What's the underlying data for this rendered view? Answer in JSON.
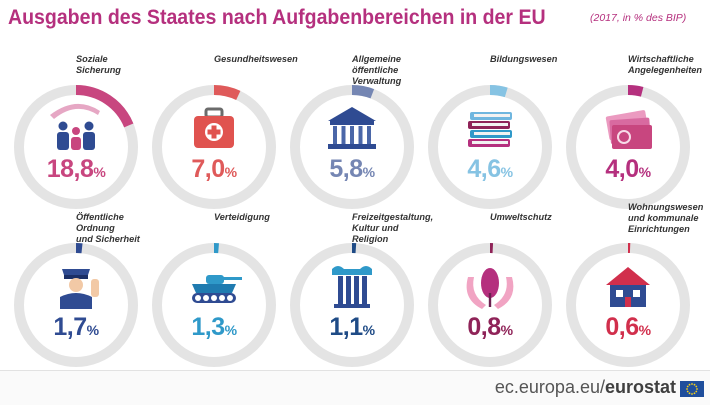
{
  "header": {
    "title": "Ausgaben des Staates nach Aufgabenbereichen in der EU",
    "subtitle": "(2017, in % des BIP)"
  },
  "footer": {
    "site_prefix": "ec.europa.eu/",
    "site_brand": "eurostat"
  },
  "colors": {
    "ring_track": "#e4e4e4",
    "title": "#b5307e",
    "pink": "#c8467f",
    "red": "#df5a5a",
    "blue_grey": "#7586b3",
    "light_blue": "#86c3e3",
    "magenta": "#b5307e",
    "navy": "#2f4b92",
    "teal": "#2f99c9",
    "dark_blue": "#1f4b86",
    "purple": "#8f2358",
    "crimson": "#d12f4c"
  },
  "chart_data": {
    "type": "pie",
    "unit": "% des BIP",
    "year": 2017,
    "categories": [
      {
        "label": "Soziale Sicherung",
        "value": 18.8,
        "display": "18,8",
        "color": "pink",
        "icon": "family-icon"
      },
      {
        "label": "Gesundheitswesen",
        "value": 7.0,
        "display": "7,0",
        "color": "red",
        "icon": "first-aid-kit-icon"
      },
      {
        "label": "Allgemeine öffentliche Verwaltung",
        "value": 5.8,
        "display": "5,8",
        "color": "blue_grey",
        "icon": "government-building-icon"
      },
      {
        "label": "Bildungswesen",
        "value": 4.6,
        "display": "4,6",
        "color": "light_blue",
        "icon": "books-icon"
      },
      {
        "label": "Wirtschaftliche Angelegenheiten",
        "value": 4.0,
        "display": "4,0",
        "color": "magenta",
        "icon": "banknotes-icon"
      },
      {
        "label": "Öffentliche Ordnung und Sicherheit",
        "value": 1.7,
        "display": "1,7",
        "color": "navy",
        "icon": "police-officer-icon"
      },
      {
        "label": "Verteidigung",
        "value": 1.3,
        "display": "1,3",
        "color": "teal",
        "icon": "tank-icon"
      },
      {
        "label": "Freizeitgestaltung, Kultur und Religion",
        "value": 1.1,
        "display": "1,1",
        "color": "dark_blue",
        "icon": "column-icon"
      },
      {
        "label": "Umweltschutz",
        "value": 0.8,
        "display": "0,8",
        "color": "purple",
        "icon": "tree-hands-icon"
      },
      {
        "label": "Wohnungswesen und kommunale Einrichtungen",
        "value": 0.6,
        "display": "0,6",
        "color": "crimson",
        "icon": "house-icon"
      }
    ],
    "label_lines": [
      [
        "Soziale",
        "Sicherung"
      ],
      [
        "Gesundheitswesen"
      ],
      [
        "Allgemeine öffentliche",
        "Verwaltung"
      ],
      [
        "Bildungswesen"
      ],
      [
        "Wirtschaftliche",
        "Angelegenheiten"
      ],
      [
        "Öffentliche Ordnung",
        "und Sicherheit"
      ],
      [
        "Verteidigung"
      ],
      [
        "Freizeitgestaltung,",
        "Kultur und Religion"
      ],
      [
        "Umweltschutz"
      ],
      [
        "Wohnungswesen",
        "und kommunale",
        "Einrichtungen"
      ]
    ],
    "percent_sign": "%"
  }
}
